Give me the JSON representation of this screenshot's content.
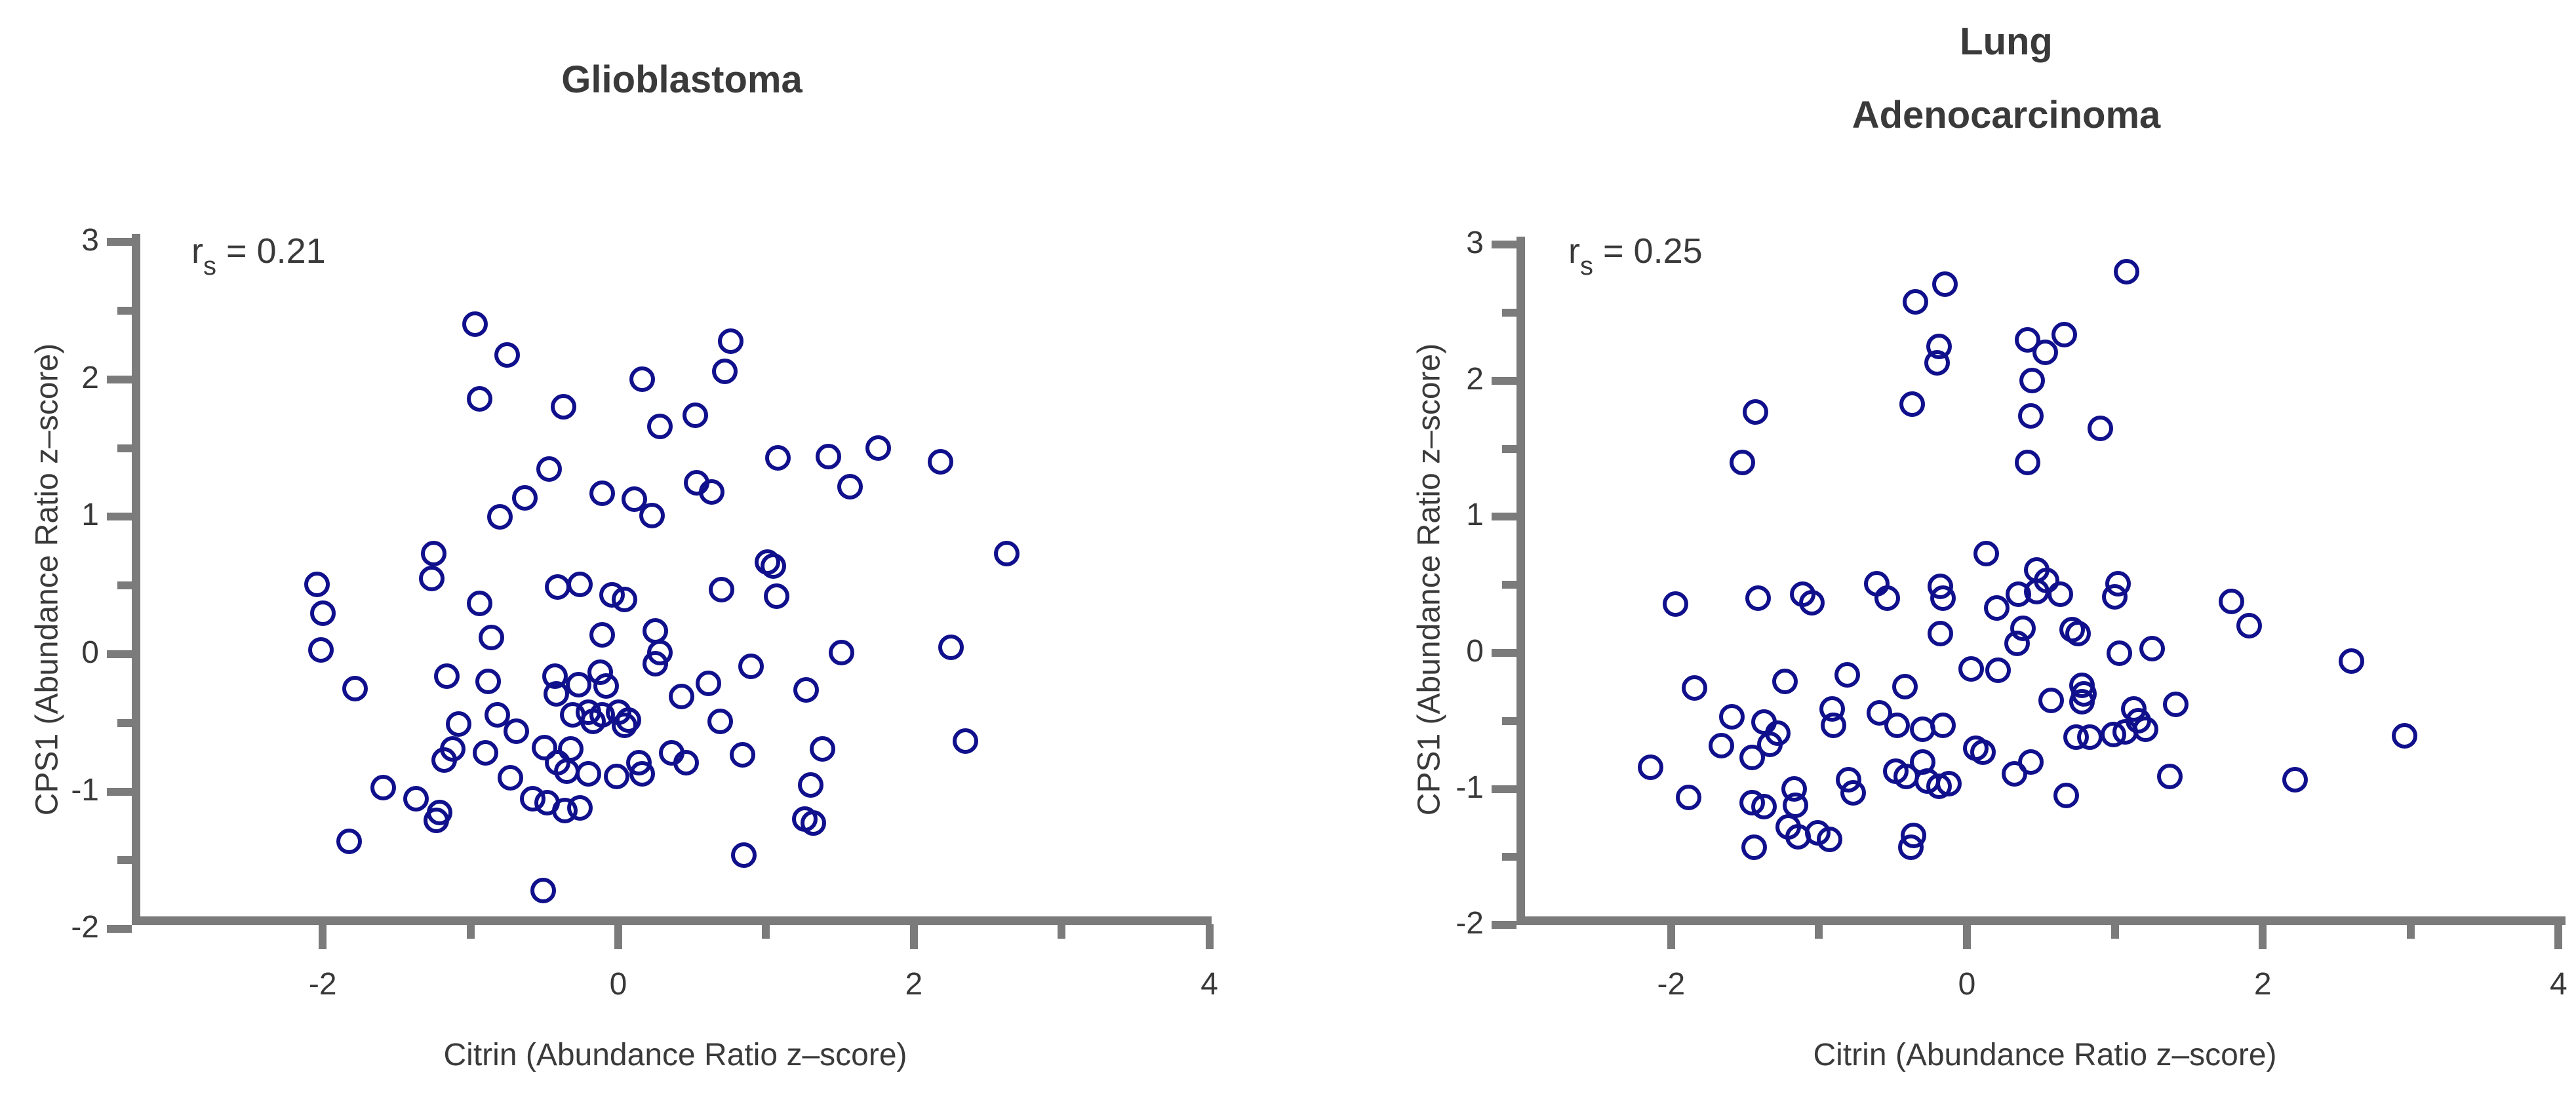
{
  "figure": {
    "background": "#ffffff",
    "marker_color": "#10108C",
    "axis_color": "#7b7b7b",
    "text_color": "#3a3a3a"
  },
  "chart_data": [
    {
      "type": "scatter",
      "title": "Glioblastoma",
      "title_display": "Glioblastoma",
      "annotation": {
        "symbol": "r",
        "subscript": "s",
        "value": "= 0.21"
      },
      "xlabel": "Citrin (Abundance Ratio z–score)",
      "ylabel": "CPS1 (Abundance Ratio z–score)",
      "xlim": [
        -3.2,
        4
      ],
      "ylim": [
        -2,
        3
      ],
      "xticks": [
        -2,
        0,
        2,
        4
      ],
      "xticks_minor": [
        -1,
        1,
        3
      ],
      "yticks": [
        -2,
        -1,
        0,
        1,
        2,
        3
      ],
      "yticks_minor": [
        -1.5,
        -0.5,
        0.5,
        1.5,
        2.5
      ],
      "grid": false,
      "legend": null,
      "marker": "open-circle",
      "points": [
        [
          -0.97,
          2.4
        ],
        [
          -0.75,
          2.18
        ],
        [
          0.76,
          2.28
        ],
        [
          0.72,
          2.06
        ],
        [
          0.16,
          2.0
        ],
        [
          -0.94,
          1.86
        ],
        [
          -0.37,
          1.8
        ],
        [
          0.52,
          1.74
        ],
        [
          0.28,
          1.66
        ],
        [
          1.76,
          1.5
        ],
        [
          1.42,
          1.44
        ],
        [
          1.08,
          1.43
        ],
        [
          2.18,
          1.4
        ],
        [
          -0.47,
          1.35
        ],
        [
          0.53,
          1.25
        ],
        [
          1.57,
          1.22
        ],
        [
          0.63,
          1.18
        ],
        [
          -0.11,
          1.17
        ],
        [
          -0.63,
          1.14
        ],
        [
          0.11,
          1.13
        ],
        [
          0.23,
          1.01
        ],
        [
          -0.8,
          1.0
        ],
        [
          2.63,
          0.73
        ],
        [
          -1.25,
          0.73
        ],
        [
          1.01,
          0.67
        ],
        [
          1.05,
          0.64
        ],
        [
          -1.26,
          0.55
        ],
        [
          -2.04,
          0.51
        ],
        [
          -0.26,
          0.51
        ],
        [
          -0.41,
          0.49
        ],
        [
          0.7,
          0.47
        ],
        [
          -0.04,
          0.43
        ],
        [
          1.07,
          0.42
        ],
        [
          0.04,
          0.4
        ],
        [
          -0.94,
          0.37
        ],
        [
          -2.0,
          0.3
        ],
        [
          0.25,
          0.17
        ],
        [
          -0.11,
          0.14
        ],
        [
          -0.86,
          0.12
        ],
        [
          2.25,
          0.05
        ],
        [
          -2.01,
          0.03
        ],
        [
          0.28,
          0.01
        ],
        [
          1.51,
          0.01
        ],
        [
          0.25,
          -0.07
        ],
        [
          0.9,
          -0.09
        ],
        [
          -0.12,
          -0.13
        ],
        [
          -1.16,
          -0.16
        ],
        [
          -0.43,
          -0.16
        ],
        [
          -0.88,
          -0.2
        ],
        [
          0.61,
          -0.21
        ],
        [
          -0.27,
          -0.22
        ],
        [
          -0.08,
          -0.23
        ],
        [
          -1.78,
          -0.25
        ],
        [
          1.27,
          -0.26
        ],
        [
          -0.42,
          -0.29
        ],
        [
          0.43,
          -0.31
        ],
        [
          -0.2,
          -0.42
        ],
        [
          0.0,
          -0.42
        ],
        [
          -0.82,
          -0.44
        ],
        [
          -0.31,
          -0.44
        ],
        [
          -0.11,
          -0.44
        ],
        [
          -0.17,
          -0.49
        ],
        [
          0.07,
          -0.48
        ],
        [
          0.69,
          -0.49
        ],
        [
          -1.08,
          -0.51
        ],
        [
          0.04,
          -0.52
        ],
        [
          -0.69,
          -0.56
        ],
        [
          2.35,
          -0.63
        ],
        [
          -0.5,
          -0.68
        ],
        [
          -0.32,
          -0.69
        ],
        [
          -1.12,
          -0.69
        ],
        [
          1.38,
          -0.69
        ],
        [
          0.36,
          -0.72
        ],
        [
          -0.9,
          -0.72
        ],
        [
          0.84,
          -0.73
        ],
        [
          -1.18,
          -0.77
        ],
        [
          0.14,
          -0.79
        ],
        [
          0.46,
          -0.79
        ],
        [
          -0.41,
          -0.79
        ],
        [
          -0.35,
          -0.85
        ],
        [
          0.16,
          -0.87
        ],
        [
          -0.2,
          -0.87
        ],
        [
          -0.01,
          -0.89
        ],
        [
          -0.73,
          -0.9
        ],
        [
          1.3,
          -0.95
        ],
        [
          -1.59,
          -0.97
        ],
        [
          -1.37,
          -1.05
        ],
        [
          -0.58,
          -1.05
        ],
        [
          -0.48,
          -1.08
        ],
        [
          -0.26,
          -1.12
        ],
        [
          -0.36,
          -1.14
        ],
        [
          -1.21,
          -1.15
        ],
        [
          1.26,
          -1.2
        ],
        [
          -1.23,
          -1.21
        ],
        [
          1.32,
          -1.23
        ],
        [
          -1.82,
          -1.36
        ],
        [
          0.85,
          -1.46
        ],
        [
          -0.51,
          -1.72
        ]
      ]
    },
    {
      "type": "scatter",
      "title": "Lung Adenocarcinoma",
      "title_display": "Lung\nAdenocarcinoma",
      "annotation": {
        "symbol": "r",
        "subscript": "s",
        "value": "= 0.25"
      },
      "xlabel": "Citrin (Abundance Ratio z–score)",
      "ylabel": "CPS1 (Abundance Ratio z–score)",
      "xlim": [
        -3,
        4
      ],
      "ylim": [
        -2,
        3
      ],
      "xticks": [
        -2,
        0,
        2,
        4
      ],
      "xticks_minor": [
        -1,
        1,
        3
      ],
      "yticks": [
        -2,
        -1,
        0,
        1,
        2,
        3
      ],
      "yticks_minor": [
        -1.5,
        -0.5,
        0.5,
        1.5,
        2.5
      ],
      "grid": false,
      "legend": null,
      "marker": "open-circle",
      "points": [
        [
          1.08,
          2.8
        ],
        [
          -0.15,
          2.71
        ],
        [
          -0.35,
          2.58
        ],
        [
          0.66,
          2.34
        ],
        [
          0.41,
          2.3
        ],
        [
          -0.19,
          2.25
        ],
        [
          0.53,
          2.21
        ],
        [
          -0.2,
          2.13
        ],
        [
          0.44,
          2.0
        ],
        [
          -0.37,
          1.83
        ],
        [
          -1.43,
          1.77
        ],
        [
          0.43,
          1.74
        ],
        [
          0.9,
          1.65
        ],
        [
          -1.52,
          1.4
        ],
        [
          0.41,
          1.4
        ],
        [
          0.13,
          0.73
        ],
        [
          0.47,
          0.61
        ],
        [
          0.54,
          0.53
        ],
        [
          1.02,
          0.51
        ],
        [
          -0.61,
          0.51
        ],
        [
          -0.18,
          0.49
        ],
        [
          0.47,
          0.45
        ],
        [
          -1.11,
          0.43
        ],
        [
          0.63,
          0.43
        ],
        [
          0.35,
          0.43
        ],
        [
          1.0,
          0.41
        ],
        [
          -1.41,
          0.4
        ],
        [
          -0.54,
          0.4
        ],
        [
          -0.16,
          0.4
        ],
        [
          1.79,
          0.38
        ],
        [
          -1.05,
          0.37
        ],
        [
          -1.97,
          0.36
        ],
        [
          0.2,
          0.33
        ],
        [
          1.91,
          0.2
        ],
        [
          0.38,
          0.18
        ],
        [
          0.71,
          0.17
        ],
        [
          0.75,
          0.14
        ],
        [
          -0.18,
          0.14
        ],
        [
          0.34,
          0.07
        ],
        [
          1.25,
          0.03
        ],
        [
          1.03,
          0.0
        ],
        [
          2.6,
          -0.06
        ],
        [
          0.03,
          -0.12
        ],
        [
          0.21,
          -0.13
        ],
        [
          -0.81,
          -0.16
        ],
        [
          -1.23,
          -0.21
        ],
        [
          0.78,
          -0.24
        ],
        [
          -0.42,
          -0.25
        ],
        [
          -1.84,
          -0.26
        ],
        [
          0.79,
          -0.3
        ],
        [
          0.57,
          -0.35
        ],
        [
          0.78,
          -0.36
        ],
        [
          1.41,
          -0.38
        ],
        [
          -0.91,
          -0.41
        ],
        [
          1.13,
          -0.41
        ],
        [
          -0.59,
          -0.44
        ],
        [
          -1.59,
          -0.47
        ],
        [
          1.16,
          -0.5
        ],
        [
          -1.37,
          -0.51
        ],
        [
          -0.9,
          -0.53
        ],
        [
          -0.47,
          -0.53
        ],
        [
          -0.16,
          -0.53
        ],
        [
          1.21,
          -0.56
        ],
        [
          -0.3,
          -0.56
        ],
        [
          1.07,
          -0.58
        ],
        [
          -1.28,
          -0.59
        ],
        [
          0.99,
          -0.6
        ],
        [
          2.96,
          -0.61
        ],
        [
          0.74,
          -0.62
        ],
        [
          0.83,
          -0.62
        ],
        [
          -1.33,
          -0.67
        ],
        [
          -1.66,
          -0.68
        ],
        [
          0.06,
          -0.7
        ],
        [
          0.11,
          -0.73
        ],
        [
          -1.45,
          -0.77
        ],
        [
          -0.3,
          -0.8
        ],
        [
          0.43,
          -0.8
        ],
        [
          -2.14,
          -0.84
        ],
        [
          -0.48,
          -0.87
        ],
        [
          0.32,
          -0.89
        ],
        [
          -0.41,
          -0.91
        ],
        [
          1.37,
          -0.91
        ],
        [
          -0.8,
          -0.93
        ],
        [
          2.22,
          -0.93
        ],
        [
          -0.27,
          -0.94
        ],
        [
          -0.12,
          -0.96
        ],
        [
          -0.19,
          -0.98
        ],
        [
          -1.17,
          -1.0
        ],
        [
          -0.77,
          -1.03
        ],
        [
          -1.88,
          -1.06
        ],
        [
          0.67,
          -1.05
        ],
        [
          -1.45,
          -1.1
        ],
        [
          -1.16,
          -1.12
        ],
        [
          -1.37,
          -1.13
        ],
        [
          -1.21,
          -1.28
        ],
        [
          -1.01,
          -1.32
        ],
        [
          -0.36,
          -1.34
        ],
        [
          -1.14,
          -1.35
        ],
        [
          -0.93,
          -1.37
        ],
        [
          -1.44,
          -1.43
        ],
        [
          -0.38,
          -1.43
        ]
      ]
    }
  ]
}
